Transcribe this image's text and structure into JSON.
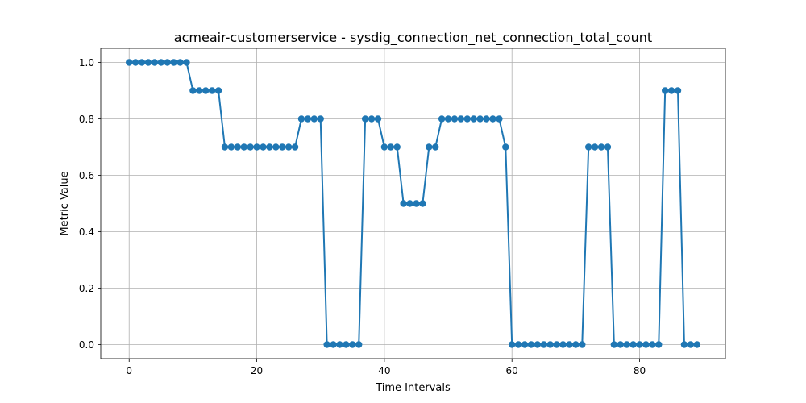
{
  "chart_data": {
    "type": "line",
    "title": "acmeair-customerservice - sysdig_connection_net_connection_total_count",
    "xlabel": "Time Intervals",
    "ylabel": "Metric Value",
    "xlim": [
      -4.45,
      93.45
    ],
    "ylim": [
      -0.05,
      1.05
    ],
    "xticks": [
      0,
      20,
      40,
      60,
      80
    ],
    "yticks": [
      0.0,
      0.2,
      0.4,
      0.6,
      0.8,
      1.0
    ],
    "xtick_labels": [
      "0",
      "20",
      "40",
      "60",
      "80"
    ],
    "ytick_labels": [
      "0.0",
      "0.2",
      "0.4",
      "0.6",
      "0.8",
      "1.0"
    ],
    "grid": true,
    "color": "#1f77b4",
    "marker": "circle",
    "series": [
      {
        "x": [
          0,
          1,
          2,
          3,
          4,
          5,
          6,
          7,
          8,
          9,
          10,
          11,
          12,
          13,
          14,
          15,
          16,
          17,
          18,
          19,
          20,
          21,
          22,
          23,
          24,
          25,
          26,
          27,
          28,
          29,
          30,
          31,
          32,
          33,
          34,
          35,
          36,
          37,
          38,
          39,
          40,
          41,
          42,
          43,
          44,
          45,
          46,
          47,
          48,
          49,
          50,
          51,
          52,
          53,
          54,
          55,
          56,
          57,
          58,
          59,
          60,
          61,
          62,
          63,
          64,
          65,
          66,
          67,
          68,
          69,
          70,
          71,
          72,
          73,
          74,
          75,
          76,
          77,
          78,
          79,
          80,
          81,
          82,
          83,
          84,
          85,
          86,
          87,
          88,
          89
        ],
        "values": [
          1.0,
          1.0,
          1.0,
          1.0,
          1.0,
          1.0,
          1.0,
          1.0,
          1.0,
          1.0,
          0.9,
          0.9,
          0.9,
          0.9,
          0.9,
          0.7,
          0.7,
          0.7,
          0.7,
          0.7,
          0.7,
          0.7,
          0.7,
          0.7,
          0.7,
          0.7,
          0.7,
          0.8,
          0.8,
          0.8,
          0.8,
          0.0,
          0.0,
          0.0,
          0.0,
          0.0,
          0.0,
          0.8,
          0.8,
          0.8,
          0.7,
          0.7,
          0.7,
          0.5,
          0.5,
          0.5,
          0.5,
          0.7,
          0.7,
          0.8,
          0.8,
          0.8,
          0.8,
          0.8,
          0.8,
          0.8,
          0.8,
          0.8,
          0.8,
          0.7,
          0.0,
          0.0,
          0.0,
          0.0,
          0.0,
          0.0,
          0.0,
          0.0,
          0.0,
          0.0,
          0.0,
          0.0,
          0.7,
          0.7,
          0.7,
          0.7,
          0.0,
          0.0,
          0.0,
          0.0,
          0.0,
          0.0,
          0.0,
          0.0,
          0.9,
          0.9,
          0.9,
          0.0,
          0.0,
          0.0
        ]
      }
    ]
  }
}
